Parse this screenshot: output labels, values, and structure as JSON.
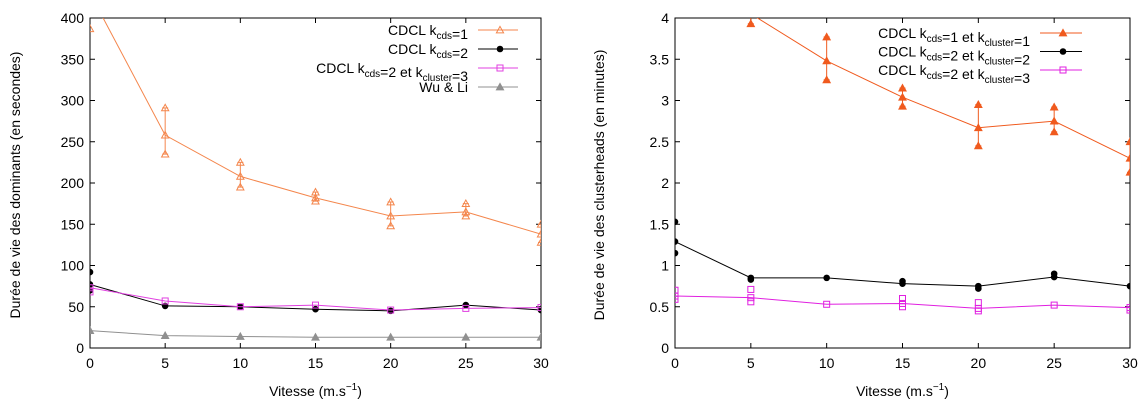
{
  "chart_data": [
    {
      "type": "line",
      "xlabel": "Vitesse (m.s",
      "xlabel_sup": "−1",
      "xlabel_end": ")",
      "ylabel": "Durée de vie des dominants (en secondes)",
      "xlim": [
        0,
        30
      ],
      "ylim": [
        0,
        400
      ],
      "xticks": [
        0,
        5,
        10,
        15,
        20,
        25,
        30
      ],
      "yticks": [
        0,
        50,
        100,
        150,
        200,
        250,
        300,
        350,
        400
      ],
      "legend_position": "top-right",
      "grid": false,
      "series": [
        {
          "name": "CDCL k_cds=1",
          "legend_parts": [
            {
              "t": "CDCL k"
            },
            {
              "t": "cds",
              "sub": true
            },
            {
              "t": "=1"
            }
          ],
          "color": "#f4864c",
          "marker": "triangle-open",
          "x": [
            0,
            5,
            10,
            15,
            20,
            25,
            30
          ],
          "y": [
            430,
            258,
            208,
            182,
            160,
            165,
            138
          ],
          "err_low": [
            null,
            235,
            195,
            178,
            148,
            160,
            128
          ],
          "err_high": [
            null,
            291,
            225,
            189,
            177,
            175,
            150
          ],
          "extra_points": [
            [
              0,
              387
            ]
          ]
        },
        {
          "name": "CDCL k_cds=2",
          "legend_parts": [
            {
              "t": "CDCL k"
            },
            {
              "t": "cds",
              "sub": true
            },
            {
              "t": "=2"
            }
          ],
          "color": "#000000",
          "marker": "circle",
          "x": [
            0,
            5,
            10,
            15,
            20,
            25,
            30
          ],
          "y": [
            77,
            51,
            50,
            47,
            45,
            52,
            46
          ],
          "err_low": [
            null,
            null,
            null,
            null,
            null,
            null,
            null
          ],
          "err_high": [
            null,
            null,
            null,
            null,
            null,
            null,
            null
          ],
          "extra_points": [
            [
              0,
              92
            ],
            [
              0,
              70
            ]
          ]
        },
        {
          "name": "CDCL k_cds=2 et k_cluster=3",
          "legend_parts": [
            {
              "t": "CDCL k"
            },
            {
              "t": "cds",
              "sub": true
            },
            {
              "t": "=2 et k"
            },
            {
              "t": "cluster",
              "sub": true
            },
            {
              "t": "=3"
            }
          ],
          "color": "#e040e0",
          "marker": "square-open",
          "x": [
            0,
            5,
            10,
            15,
            20,
            25,
            30
          ],
          "y": [
            73,
            57,
            50,
            52,
            46,
            48,
            49
          ],
          "err_low": [
            null,
            null,
            null,
            null,
            null,
            null,
            null
          ],
          "err_high": [
            null,
            null,
            null,
            null,
            null,
            null,
            null
          ],
          "extra_points": [
            [
              0,
              68
            ]
          ]
        },
        {
          "name": "Wu & Li",
          "legend_parts": [
            {
              "t": "Wu & Li"
            }
          ],
          "color": "#909090",
          "marker": "triangle-filled",
          "x": [
            0,
            5,
            10,
            15,
            20,
            25,
            30
          ],
          "y": [
            21,
            15,
            14,
            13,
            13,
            13,
            13
          ],
          "err_low": [
            null,
            null,
            null,
            null,
            null,
            null,
            null
          ],
          "err_high": [
            null,
            null,
            null,
            null,
            null,
            null,
            null
          ],
          "extra_points": []
        }
      ]
    },
    {
      "type": "line",
      "xlabel": "Vitesse (m.s",
      "xlabel_sup": "−1",
      "xlabel_end": ")",
      "ylabel": "Durée de vie des clusterheads (en minutes)",
      "xlim": [
        0,
        30
      ],
      "ylim": [
        0,
        4
      ],
      "xticks": [
        0,
        5,
        10,
        15,
        20,
        25,
        30
      ],
      "yticks": [
        0,
        0.5,
        1,
        1.5,
        2,
        2.5,
        3,
        3.5,
        4
      ],
      "legend_position": "top-right",
      "grid": false,
      "series": [
        {
          "name": "CDCL k_cds=1 et k_cluster=1",
          "legend_parts": [
            {
              "t": "CDCL k"
            },
            {
              "t": "cds",
              "sub": true
            },
            {
              "t": "=1 et k"
            },
            {
              "t": "cluster",
              "sub": true
            },
            {
              "t": "=1"
            }
          ],
          "color": "#f05a1e",
          "marker": "triangle-filled",
          "x": [
            0,
            5,
            10,
            15,
            20,
            25,
            30
          ],
          "y": [
            4.6,
            4.05,
            3.48,
            3.04,
            2.67,
            2.75,
            2.3
          ],
          "err_low": [
            null,
            3.93,
            3.25,
            2.93,
            2.45,
            2.62,
            2.13
          ],
          "err_high": [
            null,
            4.15,
            3.77,
            3.15,
            2.95,
            2.92,
            2.5
          ],
          "extra_points": []
        },
        {
          "name": "CDCL k_cds=2 et k_cluster=2",
          "legend_parts": [
            {
              "t": "CDCL k"
            },
            {
              "t": "cds",
              "sub": true
            },
            {
              "t": "=2 et k"
            },
            {
              "t": "cluster",
              "sub": true
            },
            {
              "t": "=2"
            }
          ],
          "color": "#000000",
          "marker": "circle",
          "x": [
            0,
            5,
            10,
            15,
            20,
            25,
            30
          ],
          "y": [
            1.29,
            0.85,
            0.85,
            0.78,
            0.75,
            0.86,
            0.75
          ],
          "err_low": [
            null,
            null,
            null,
            null,
            null,
            null,
            null
          ],
          "err_high": [
            null,
            null,
            null,
            null,
            null,
            null,
            null
          ],
          "extra_points": [
            [
              0,
              1.53
            ],
            [
              0,
              1.15
            ],
            [
              5,
              0.83
            ],
            [
              15,
              0.81
            ],
            [
              20,
              0.72
            ],
            [
              25,
              0.9
            ]
          ]
        },
        {
          "name": "CDCL k_cds=2 et k_cluster=3",
          "legend_parts": [
            {
              "t": "CDCL k"
            },
            {
              "t": "cds",
              "sub": true
            },
            {
              "t": "=2 et k"
            },
            {
              "t": "cluster",
              "sub": true
            },
            {
              "t": "=3"
            }
          ],
          "color": "#e020e0",
          "marker": "square-open",
          "x": [
            0,
            5,
            10,
            15,
            20,
            25,
            30
          ],
          "y": [
            0.63,
            0.61,
            0.53,
            0.54,
            0.48,
            0.52,
            0.49
          ],
          "err_low": [
            null,
            null,
            null,
            null,
            null,
            null,
            null
          ],
          "err_high": [
            null,
            null,
            null,
            null,
            null,
            null,
            null
          ],
          "extra_points": [
            [
              0,
              0.7
            ],
            [
              0,
              0.59
            ],
            [
              5,
              0.71
            ],
            [
              5,
              0.56
            ],
            [
              15,
              0.6
            ],
            [
              15,
              0.5
            ],
            [
              20,
              0.55
            ],
            [
              20,
              0.45
            ],
            [
              30,
              0.46
            ]
          ]
        }
      ]
    }
  ]
}
